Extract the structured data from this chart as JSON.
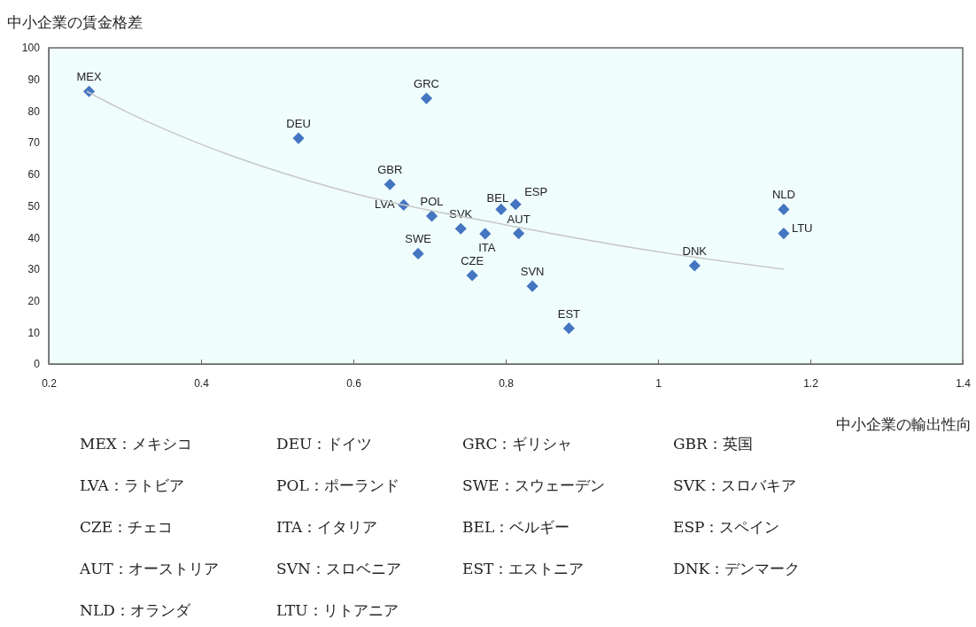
{
  "chart_data": {
    "type": "scatter",
    "ylabel": "中小企業の賃金格差",
    "xlabel": "中小企業の輸出性向",
    "xlim": [
      0.2,
      1.4
    ],
    "xticks": [
      0.2,
      0.4,
      0.6,
      0.8,
      1,
      1.2,
      1.4
    ],
    "ylim": [
      0,
      100
    ],
    "yticks": [
      0,
      10,
      20,
      30,
      40,
      50,
      60,
      70,
      80,
      90,
      100
    ],
    "grid": false,
    "marker": "diamond",
    "series": [
      {
        "color": "#4475c1",
        "x": [
          0.253,
          0.528,
          0.696,
          0.648,
          0.666,
          0.703,
          0.685,
          0.741,
          0.773,
          0.756,
          0.794,
          0.813,
          0.817,
          0.835,
          0.883,
          1.048,
          1.165,
          1.165
        ],
        "values": [
          86.2,
          71.4,
          84,
          56.8,
          50.3,
          46.8,
          34.9,
          42.8,
          41.2,
          28,
          48.9,
          50.5,
          41.3,
          24.6,
          11.3,
          31.1,
          48.9,
          41.3
        ],
        "value_labels": [
          "MEX",
          "DEU",
          "GRC",
          "GBR",
          "LVA",
          "POL",
          "SWE",
          "SVK",
          "ITA",
          "CZE",
          "BEL",
          "ESP",
          "AUT",
          "SVN",
          "EST",
          "DNK",
          "NLD",
          "LTU"
        ]
      },
      {
        "type": "line",
        "color": "#c8c8c8",
        "marker": "none",
        "line_style": "solid",
        "x": [
          0.25,
          0.3,
          0.4,
          0.5,
          0.6,
          0.8,
          1.0,
          1.165
        ],
        "values": [
          86.2,
          80,
          69.5,
          61,
          54,
          44,
          35.5,
          30
        ]
      }
    ],
    "annotations": [
      "MEX：メキシコ",
      "DEU：ドイツ",
      "GRC：ギリシャ",
      "GBR：英国",
      "LVA：ラトビア",
      "POL：ポーランド",
      "SWE：スウェーデン",
      "SVK：スロバキア",
      "CZE：チェコ",
      "ITA：イタリア",
      "BEL：ベルギー",
      "ESP：スペイン",
      "AUT：オーストリア",
      "SVN：スロベニア",
      "EST：エストニア",
      "DNK：デンマーク",
      "NLD：オランダ",
      "LTU：リトアニア"
    ]
  }
}
